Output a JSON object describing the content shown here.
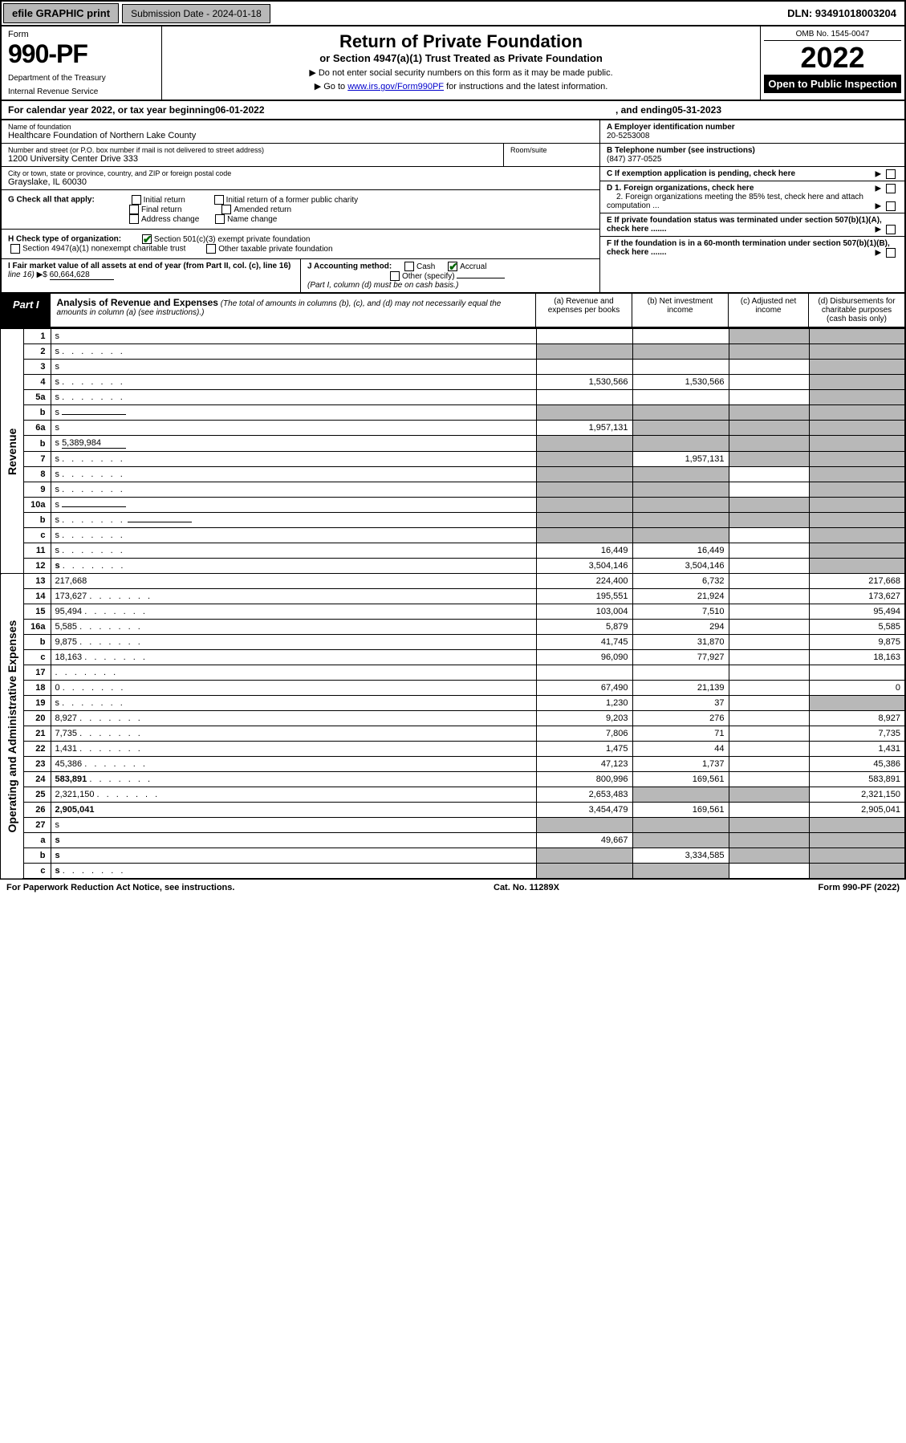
{
  "topbar": {
    "efile": "efile GRAPHIC print",
    "submission": "Submission Date - 2024-01-18",
    "dln": "DLN: 93491018003204"
  },
  "header": {
    "form_label": "Form",
    "form_number": "990-PF",
    "dept1": "Department of the Treasury",
    "dept2": "Internal Revenue Service",
    "title": "Return of Private Foundation",
    "subtitle": "or Section 4947(a)(1) Trust Treated as Private Foundation",
    "note1": "▶ Do not enter social security numbers on this form as it may be made public.",
    "note2_pre": "▶ Go to ",
    "note2_link": "www.irs.gov/Form990PF",
    "note2_post": " for instructions and the latest information.",
    "omb": "OMB No. 1545-0047",
    "year": "2022",
    "open": "Open to Public Inspection"
  },
  "calyear": {
    "pre": "For calendar year 2022, or tax year beginning ",
    "begin": "06-01-2022",
    "mid": " , and ending ",
    "end": "05-31-2023"
  },
  "info": {
    "name_lbl": "Name of foundation",
    "name": "Healthcare Foundation of Northern Lake County",
    "addr_lbl": "Number and street (or P.O. box number if mail is not delivered to street address)",
    "addr": "1200 University Center Drive 333",
    "room_lbl": "Room/suite",
    "city_lbl": "City or town, state or province, country, and ZIP or foreign postal code",
    "city": "Grayslake, IL  60030",
    "a_lbl": "A Employer identification number",
    "a_val": "20-5253008",
    "b_lbl": "B Telephone number (see instructions)",
    "b_val": "(847) 377-0525",
    "c_lbl": "C If exemption application is pending, check here"
  },
  "sectG": {
    "lbl": "G Check all that apply:",
    "opts": [
      "Initial return",
      "Initial return of a former public charity",
      "Final return",
      "Amended return",
      "Address change",
      "Name change"
    ]
  },
  "sectH": {
    "lbl": "H Check type of organization:",
    "opt1": "Section 501(c)(3) exempt private foundation",
    "opt2": "Section 4947(a)(1) nonexempt charitable trust",
    "opt3": "Other taxable private foundation"
  },
  "sectI": {
    "lbl": "I Fair market value of all assets at end of year (from Part II, col. (c), line 16)",
    "val": "60,664,628"
  },
  "sectJ": {
    "lbl": "J Accounting method:",
    "cash": "Cash",
    "accrual": "Accrual",
    "other": "Other (specify)",
    "note": "(Part I, column (d) must be on cash basis.)"
  },
  "sectD": {
    "d1": "D 1. Foreign organizations, check here",
    "d2": "2. Foreign organizations meeting the 85% test, check here and attach computation ..."
  },
  "sectE": "E  If private foundation status was terminated under section 507(b)(1)(A), check here .......",
  "sectF": "F  If the foundation is in a 60-month termination under section 507(b)(1)(B), check here .......",
  "part1": {
    "label": "Part I",
    "title": "Analysis of Revenue and Expenses",
    "desc": " (The total of amounts in columns (b), (c), and (d) may not necessarily equal the amounts in column (a) (see instructions).)",
    "cols": {
      "a": "(a)   Revenue and expenses per books",
      "b": "(b)   Net investment income",
      "c": "(c)   Adjusted net income",
      "d": "(d)   Disbursements for charitable purposes (cash basis only)"
    }
  },
  "sides": {
    "rev": "Revenue",
    "exp": "Operating and Administrative Expenses"
  },
  "rows": [
    {
      "n": "1",
      "d": "s",
      "a": "",
      "b": "",
      "c": "s"
    },
    {
      "n": "2",
      "d": "s",
      "dots": true,
      "a": "s",
      "b": "s",
      "c": "s",
      "checked": true
    },
    {
      "n": "3",
      "d": "s",
      "a": "",
      "b": "",
      "c": ""
    },
    {
      "n": "4",
      "d": "s",
      "dots": true,
      "a": "1,530,566",
      "b": "1,530,566",
      "c": ""
    },
    {
      "n": "5a",
      "d": "s",
      "dots": true,
      "a": "",
      "b": "",
      "c": ""
    },
    {
      "n": "b",
      "d": "s",
      "inline": "",
      "a": "s",
      "b": "s",
      "c": "s"
    },
    {
      "n": "6a",
      "d": "s",
      "a": "1,957,131",
      "b": "s",
      "c": "s"
    },
    {
      "n": "b",
      "d": "s",
      "inline": "5,389,984",
      "a": "s",
      "b": "s",
      "c": "s"
    },
    {
      "n": "7",
      "d": "s",
      "dots": true,
      "a": "s",
      "b": "1,957,131",
      "c": "s"
    },
    {
      "n": "8",
      "d": "s",
      "dots": true,
      "a": "s",
      "b": "s",
      "c": ""
    },
    {
      "n": "9",
      "d": "s",
      "dots": true,
      "a": "s",
      "b": "s",
      "c": ""
    },
    {
      "n": "10a",
      "d": "s",
      "inline": "",
      "a": "s",
      "b": "s",
      "c": "s"
    },
    {
      "n": "b",
      "d": "s",
      "dots": true,
      "inline": "",
      "a": "s",
      "b": "s",
      "c": "s"
    },
    {
      "n": "c",
      "d": "s",
      "dots": true,
      "a": "s",
      "b": "s",
      "c": ""
    },
    {
      "n": "11",
      "d": "s",
      "dots": true,
      "a": "16,449",
      "b": "16,449",
      "c": ""
    },
    {
      "n": "12",
      "d": "s",
      "dots": true,
      "bold": true,
      "a": "3,504,146",
      "b": "3,504,146",
      "c": ""
    },
    {
      "n": "13",
      "d": "217,668",
      "a": "224,400",
      "b": "6,732",
      "c": ""
    },
    {
      "n": "14",
      "d": "173,627",
      "dots": true,
      "a": "195,551",
      "b": "21,924",
      "c": ""
    },
    {
      "n": "15",
      "d": "95,494",
      "dots": true,
      "a": "103,004",
      "b": "7,510",
      "c": ""
    },
    {
      "n": "16a",
      "d": "5,585",
      "dots": true,
      "a": "5,879",
      "b": "294",
      "c": ""
    },
    {
      "n": "b",
      "d": "9,875",
      "dots": true,
      "a": "41,745",
      "b": "31,870",
      "c": ""
    },
    {
      "n": "c",
      "d": "18,163",
      "dots": true,
      "a": "96,090",
      "b": "77,927",
      "c": ""
    },
    {
      "n": "17",
      "d": "",
      "dots": true,
      "a": "",
      "b": "",
      "c": ""
    },
    {
      "n": "18",
      "d": "0",
      "dots": true,
      "a": "67,490",
      "b": "21,139",
      "c": ""
    },
    {
      "n": "19",
      "d": "s",
      "dots": true,
      "a": "1,230",
      "b": "37",
      "c": ""
    },
    {
      "n": "20",
      "d": "8,927",
      "dots": true,
      "a": "9,203",
      "b": "276",
      "c": ""
    },
    {
      "n": "21",
      "d": "7,735",
      "dots": true,
      "a": "7,806",
      "b": "71",
      "c": ""
    },
    {
      "n": "22",
      "d": "1,431",
      "dots": true,
      "a": "1,475",
      "b": "44",
      "c": ""
    },
    {
      "n": "23",
      "d": "45,386",
      "dots": true,
      "a": "47,123",
      "b": "1,737",
      "c": ""
    },
    {
      "n": "24",
      "d": "583,891",
      "dots": true,
      "bold": true,
      "a": "800,996",
      "b": "169,561",
      "c": ""
    },
    {
      "n": "25",
      "d": "2,321,150",
      "dots": true,
      "a": "2,653,483",
      "b": "s",
      "c": "s"
    },
    {
      "n": "26",
      "d": "2,905,041",
      "bold": true,
      "a": "3,454,479",
      "b": "169,561",
      "c": ""
    },
    {
      "n": "27",
      "d": "s",
      "a": "s",
      "b": "s",
      "c": "s"
    },
    {
      "n": "a",
      "d": "s",
      "bold": true,
      "a": "49,667",
      "b": "s",
      "c": "s"
    },
    {
      "n": "b",
      "d": "s",
      "bold": true,
      "a": "s",
      "b": "3,334,585",
      "c": "s"
    },
    {
      "n": "c",
      "d": "s",
      "dots": true,
      "bold": true,
      "a": "s",
      "b": "s",
      "c": ""
    }
  ],
  "footer": {
    "left": "For Paperwork Reduction Act Notice, see instructions.",
    "mid": "Cat. No. 11289X",
    "right": "Form 990-PF (2022)"
  }
}
